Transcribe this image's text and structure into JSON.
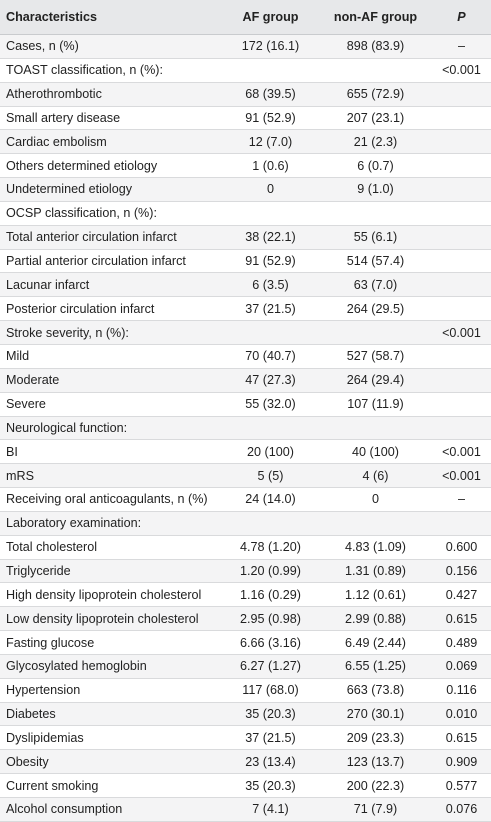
{
  "header": {
    "characteristics": "Characteristics",
    "af_group": "AF group",
    "non_af_group": "non-AF group",
    "p": "P"
  },
  "rows": [
    {
      "label": "Cases, n (%)",
      "af": "172 (16.1)",
      "non_af": "898 (83.9)",
      "p": "–"
    },
    {
      "label": "TOAST classification, n (%):",
      "af": "",
      "non_af": "",
      "p": "<0.001"
    },
    {
      "label": "Atherothrombotic",
      "af": "68 (39.5)",
      "non_af": "655 (72.9)",
      "p": ""
    },
    {
      "label": "Small artery disease",
      "af": "91 (52.9)",
      "non_af": "207 (23.1)",
      "p": ""
    },
    {
      "label": "Cardiac embolism",
      "af": "12 (7.0)",
      "non_af": "21 (2.3)",
      "p": ""
    },
    {
      "label": "Others determined etiology",
      "af": "1 (0.6)",
      "non_af": "6 (0.7)",
      "p": ""
    },
    {
      "label": "Undetermined etiology",
      "af": "0",
      "non_af": "9 (1.0)",
      "p": ""
    },
    {
      "label": "OCSP classification, n (%):",
      "af": "",
      "non_af": "",
      "p": ""
    },
    {
      "label": "Total anterior circulation infarct",
      "af": "38 (22.1)",
      "non_af": "55 (6.1)",
      "p": ""
    },
    {
      "label": "Partial anterior circulation infarct",
      "af": "91 (52.9)",
      "non_af": "514 (57.4)",
      "p": ""
    },
    {
      "label": "Lacunar infarct",
      "af": "6 (3.5)",
      "non_af": "63 (7.0)",
      "p": ""
    },
    {
      "label": "Posterior circulation infarct",
      "af": "37 (21.5)",
      "non_af": "264 (29.5)",
      "p": ""
    },
    {
      "label": "Stroke severity, n (%):",
      "af": "",
      "non_af": "",
      "p": "<0.001"
    },
    {
      "label": "Mild",
      "af": "70 (40.7)",
      "non_af": "527 (58.7)",
      "p": ""
    },
    {
      "label": "Moderate",
      "af": "47 (27.3)",
      "non_af": "264 (29.4)",
      "p": ""
    },
    {
      "label": "Severe",
      "af": "55 (32.0)",
      "non_af": "107 (11.9)",
      "p": ""
    },
    {
      "label": "Neurological function:",
      "af": "",
      "non_af": "",
      "p": ""
    },
    {
      "label": "BI",
      "af": "20 (100)",
      "non_af": "40 (100)",
      "p": "<0.001"
    },
    {
      "label": "mRS",
      "af": "5 (5)",
      "non_af": "4 (6)",
      "p": "<0.001"
    },
    {
      "label": "Receiving oral anticoagulants, n (%)",
      "af": "24 (14.0)",
      "non_af": "0",
      "p": "–"
    },
    {
      "label": "Laboratory examination:",
      "af": "",
      "non_af": "",
      "p": ""
    },
    {
      "label": "Total cholesterol",
      "af": "4.78 (1.20)",
      "non_af": "4.83 (1.09)",
      "p": "0.600"
    },
    {
      "label": "Triglyceride",
      "af": "1.20 (0.99)",
      "non_af": "1.31 (0.89)",
      "p": "0.156"
    },
    {
      "label": "High density lipoprotein cholesterol",
      "af": "1.16 (0.29)",
      "non_af": "1.12 (0.61)",
      "p": "0.427"
    },
    {
      "label": "Low density lipoprotein cholesterol",
      "af": "2.95 (0.98)",
      "non_af": "2.99 (0.88)",
      "p": "0.615"
    },
    {
      "label": "Fasting glucose",
      "af": "6.66 (3.16)",
      "non_af": "6.49 (2.44)",
      "p": "0.489"
    },
    {
      "label": "Glycosylated hemoglobin",
      "af": "6.27 (1.27)",
      "non_af": "6.55 (1.25)",
      "p": "0.069"
    },
    {
      "label": "Hypertension",
      "af": "117 (68.0)",
      "non_af": "663 (73.8)",
      "p": "0.116"
    },
    {
      "label": "Diabetes",
      "af": "35 (20.3)",
      "non_af": "270 (30.1)",
      "p": "0.010"
    },
    {
      "label": "Dyslipidemias",
      "af": "37 (21.5)",
      "non_af": "209 (23.3)",
      "p": "0.615"
    },
    {
      "label": "Obesity",
      "af": "23 (13.4)",
      "non_af": "123 (13.7)",
      "p": "0.909"
    },
    {
      "label": "Current smoking",
      "af": "35 (20.3)",
      "non_af": "200 (22.3)",
      "p": "0.577"
    },
    {
      "label": "Alcohol consumption",
      "af": "7 (4.1)",
      "non_af": "71 (7.9)",
      "p": "0.076"
    }
  ]
}
